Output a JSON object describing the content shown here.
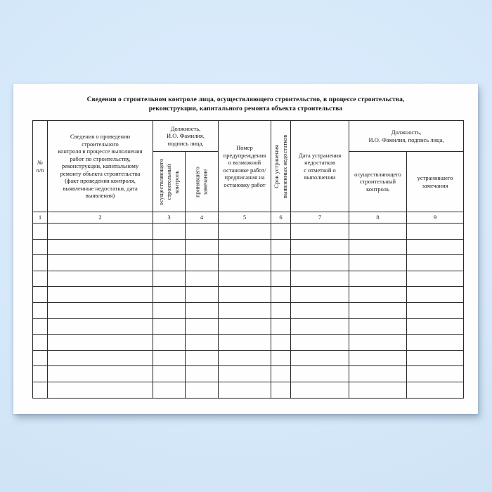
{
  "document": {
    "title": "Сведения о строительном контроле лица, осуществляющего строительство, в процессе строительства,\nреконструкции, капитального  ремонта объекта строительства"
  },
  "table": {
    "header": {
      "col1": "№\nп/п",
      "col2": "Сведения о проведении\nстроительного\nконтроля в процессе  выполнения\nработ по строительству,\nреконструкции, капитальному\nремонту объекта строительства\n(факт проведения контроля,\nвыявленные недостатки, дата\nвыявления)",
      "col34_group": "Должность,\nИ.О. Фамилия,\nподпись лица,",
      "col3_vertical": "осуществляющего\nстроительный\nконтроль",
      "col4_vertical": "принявшего\nзамечание",
      "col5": "Номер\nпредупреждения\nо возможной\nостановке работ/\nпредписания на\nостановку работ",
      "col6_vertical": "Срок устранения\nвыявленных недостатков",
      "col7": "Дата устранения\nнедостатков\nс отметкой о\nвыполнении",
      "col89_group": "Должность,\nИ.О. Фамилия, подпись лица,",
      "col8": "осуществляющего\nстроительный\nконтроль",
      "col9": "устранившего\nзамечания"
    },
    "column_numbers": [
      "1",
      "2",
      "3",
      "4",
      "5",
      "6",
      "7",
      "8",
      "9"
    ],
    "body_rows": [
      [
        "",
        "",
        "",
        "",
        "",
        "",
        "",
        "",
        ""
      ],
      [
        "",
        "",
        "",
        "",
        "",
        "",
        "",
        "",
        ""
      ],
      [
        "",
        "",
        "",
        "",
        "",
        "",
        "",
        "",
        ""
      ],
      [
        "",
        "",
        "",
        "",
        "",
        "",
        "",
        "",
        ""
      ],
      [
        "",
        "",
        "",
        "",
        "",
        "",
        "",
        "",
        ""
      ],
      [
        "",
        "",
        "",
        "",
        "",
        "",
        "",
        "",
        ""
      ],
      [
        "",
        "",
        "",
        "",
        "",
        "",
        "",
        "",
        ""
      ],
      [
        "",
        "",
        "",
        "",
        "",
        "",
        "",
        "",
        ""
      ],
      [
        "",
        "",
        "",
        "",
        "",
        "",
        "",
        "",
        ""
      ],
      [
        "",
        "",
        "",
        "",
        "",
        "",
        "",
        "",
        ""
      ],
      [
        "",
        "",
        "",
        "",
        "",
        "",
        "",
        "",
        ""
      ]
    ]
  },
  "colors": {
    "background": "#d6e9fa",
    "page": "#fefefe",
    "border": "#2a2a2a",
    "text": "#1a1a1e"
  }
}
